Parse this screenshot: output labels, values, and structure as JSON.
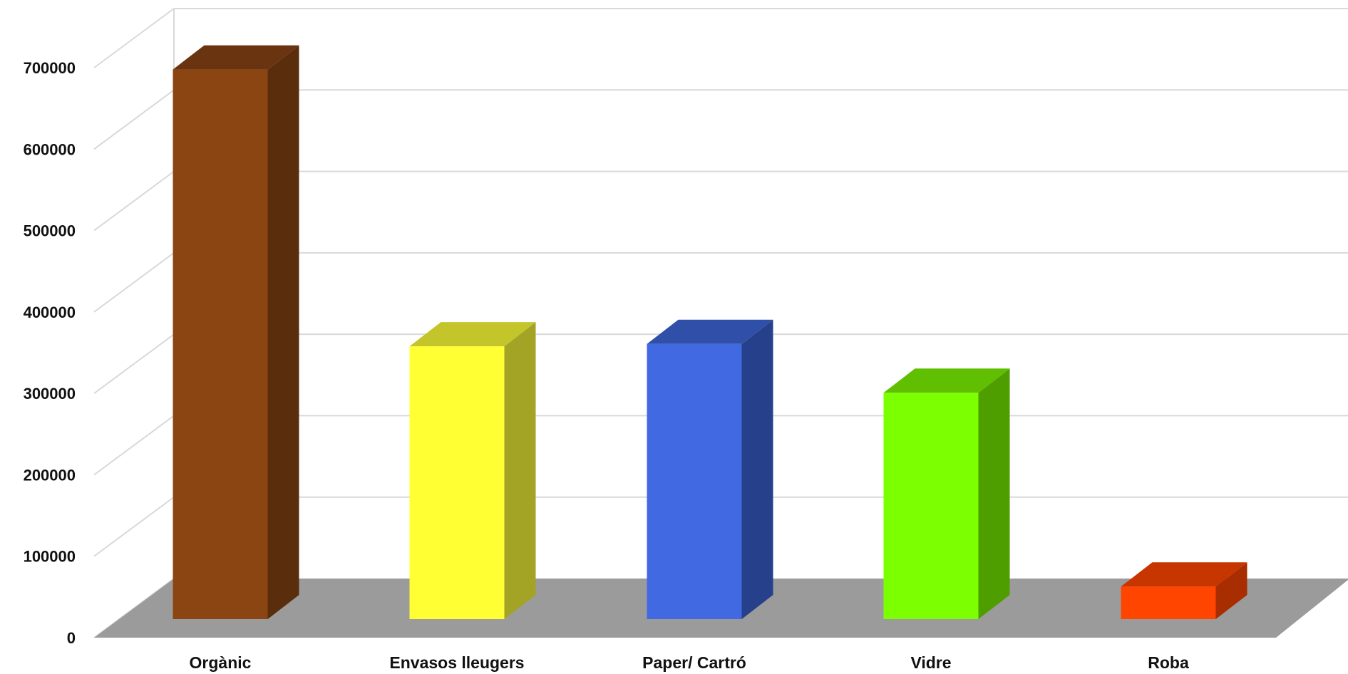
{
  "chart_data": {
    "type": "bar",
    "categories": [
      "Orgànic",
      "Envasos lleugers",
      "Paper/ Cartró",
      "Vidre",
      "Roba"
    ],
    "values": [
      675000,
      335000,
      338000,
      278000,
      40000
    ],
    "ylim": [
      0,
      700000
    ],
    "yticks": [
      "0",
      "100000",
      "200000",
      "300000",
      "400000",
      "500000",
      "600000",
      "700000"
    ],
    "grid": true,
    "legend": "none",
    "style": "3d-column",
    "colors": {
      "front": [
        "#8b4513",
        "#ffff33",
        "#4169e1",
        "#7cff00",
        "#ff4500"
      ],
      "side": [
        "#5a2d0c",
        "#a3a326",
        "#27408b",
        "#4f9e00",
        "#a82d00"
      ],
      "top": [
        "#6b3410",
        "#c4c42b",
        "#2f4fa8",
        "#5fbf00",
        "#c83600"
      ],
      "floor": "#9b9b9b",
      "gridline": "#d9d9d9"
    }
  }
}
